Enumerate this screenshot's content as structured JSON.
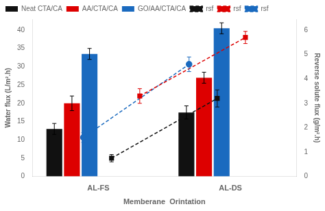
{
  "chart_data": {
    "type": "bar",
    "xlabel": "Memberane  Orintation",
    "ylabel": "Water flux (L/m².h)",
    "y2label": "Reverse solute flux (g/m².h)",
    "categories": [
      "AL-FS",
      "AL-DS"
    ],
    "series": [
      {
        "name": "Neat CTA/CA",
        "color": "#111111",
        "values": [
          13.0,
          17.5
        ],
        "errors": [
          1.5,
          1.8
        ]
      },
      {
        "name": "AA/CTA/CA",
        "color": "#dd0000",
        "values": [
          20.0,
          27.0
        ],
        "errors": [
          2.0,
          1.5
        ]
      },
      {
        "name": "GO/AA/CTA/CA",
        "color": "#1a6abf",
        "values": [
          33.5,
          40.5
        ],
        "errors": [
          1.5,
          1.5
        ]
      },
      {
        "name": "rsf",
        "type": "line",
        "axis": "y2",
        "color": "#111111",
        "marker": "square",
        "line_style": "dashed",
        "values": [
          0.75,
          3.2
        ],
        "errors": [
          0.15,
          0.35
        ]
      },
      {
        "name": "rsf",
        "type": "line",
        "axis": "y2",
        "color": "#dd0000",
        "marker": "square",
        "line_style": "dashed",
        "values": [
          3.3,
          5.7
        ],
        "errors": [
          0.3,
          0.25
        ]
      },
      {
        "name": "rsf",
        "type": "line",
        "axis": "y2",
        "color": "#1a6abf",
        "marker": "circle",
        "line_style": "dashed",
        "values": [
          1.6,
          4.6
        ],
        "errors": [
          0.2,
          0.3
        ]
      }
    ],
    "ylim": [
      0,
      43
    ],
    "yticks": [
      0,
      5,
      10,
      15,
      20,
      25,
      30,
      35,
      40
    ],
    "y2lim": [
      0,
      6.45
    ],
    "y2ticks": [
      0,
      1,
      2,
      3,
      4,
      5,
      6
    ],
    "grid": false,
    "legend": "upper left"
  }
}
